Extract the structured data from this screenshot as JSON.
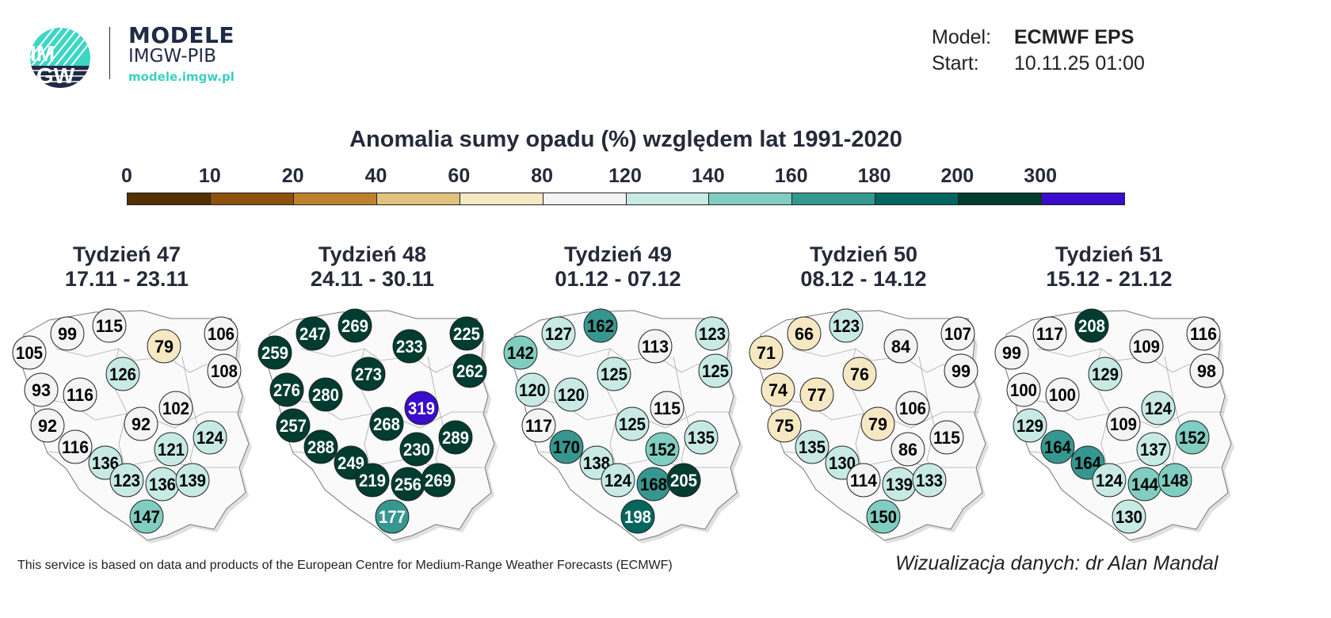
{
  "logo": {
    "mark": "IMGW",
    "line1": "MODELE",
    "line2": "IMGW-PIB",
    "url": "modele.imgw.pl"
  },
  "meta": {
    "model_label": "Model:",
    "model_value": "ECMWF EPS",
    "start_label": "Start:",
    "start_value": "10.11.25 01:00"
  },
  "title": "Anomalia sumy opadu (%) względem lat 1991-2020",
  "colorbar": {
    "ticks": [
      "0",
      "10",
      "20",
      "40",
      "60",
      "80",
      "120",
      "140",
      "160",
      "180",
      "200",
      "300"
    ],
    "colors": [
      "#543005",
      "#8c510a",
      "#bf812d",
      "#dfc27d",
      "#f6e8c3",
      "#f4f4f4",
      "#c7eae5",
      "#80cdc1",
      "#35978f",
      "#01665e",
      "#003c30",
      "#3a0ccc"
    ]
  },
  "weeks": [
    {
      "title": "Tydzień 47",
      "dates": "17.11 - 23.11",
      "values": [
        105,
        99,
        115,
        79,
        106,
        108,
        126,
        93,
        116,
        102,
        92,
        92,
        116,
        124,
        121,
        136,
        123,
        136,
        139,
        147
      ]
    },
    {
      "title": "Tydzień 48",
      "dates": "24.11 - 30.11",
      "values": [
        259,
        247,
        269,
        233,
        225,
        262,
        273,
        276,
        280,
        319,
        257,
        268,
        288,
        289,
        230,
        249,
        219,
        256,
        269,
        177
      ]
    },
    {
      "title": "Tydzień 49",
      "dates": "01.12 - 07.12",
      "values": [
        142,
        127,
        162,
        113,
        123,
        125,
        125,
        120,
        120,
        115,
        117,
        125,
        170,
        135,
        152,
        138,
        124,
        168,
        205,
        198
      ]
    },
    {
      "title": "Tydzień 50",
      "dates": "08.12 - 14.12",
      "values": [
        71,
        66,
        123,
        84,
        107,
        99,
        76,
        74,
        77,
        106,
        75,
        79,
        135,
        115,
        86,
        130,
        114,
        139,
        133,
        150
      ]
    },
    {
      "title": "Tydzień 51",
      "dates": "15.12 - 21.12",
      "values": [
        99,
        117,
        208,
        109,
        116,
        98,
        129,
        100,
        100,
        124,
        129,
        109,
        164,
        152,
        137,
        164,
        124,
        144,
        148,
        130
      ]
    }
  ],
  "footer": {
    "source": "This service is based on data and products of the European Centre for Medium-Range Weather Forecasts (ECMWF)",
    "credit": "Wizualizacja danych: dr Alan Mandal"
  }
}
